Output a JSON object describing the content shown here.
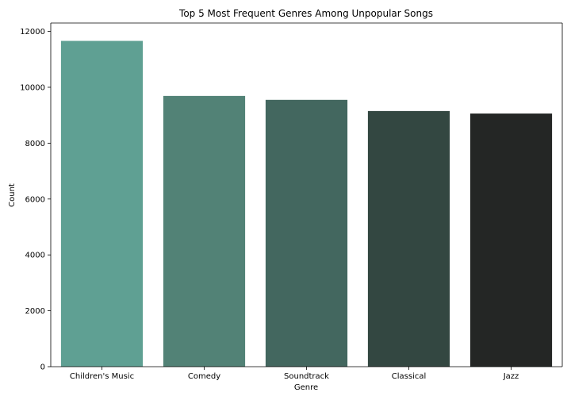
{
  "chart_data": {
    "type": "bar",
    "title": "Top 5 Most Frequent Genres Among Unpopular Songs",
    "xlabel": "Genre",
    "ylabel": "Count",
    "categories": [
      "Children's Music",
      "Comedy",
      "Soundtrack",
      "Classical",
      "Jazz"
    ],
    "values": [
      11660,
      9690,
      9550,
      9150,
      9060
    ],
    "colors": [
      "#5fa093",
      "#528276",
      "#43675f",
      "#334741",
      "#242625"
    ],
    "ylim": [
      0,
      12300
    ],
    "yticks": [
      0,
      2000,
      4000,
      6000,
      8000,
      10000,
      12000
    ],
    "grid": false,
    "legend": "none"
  }
}
